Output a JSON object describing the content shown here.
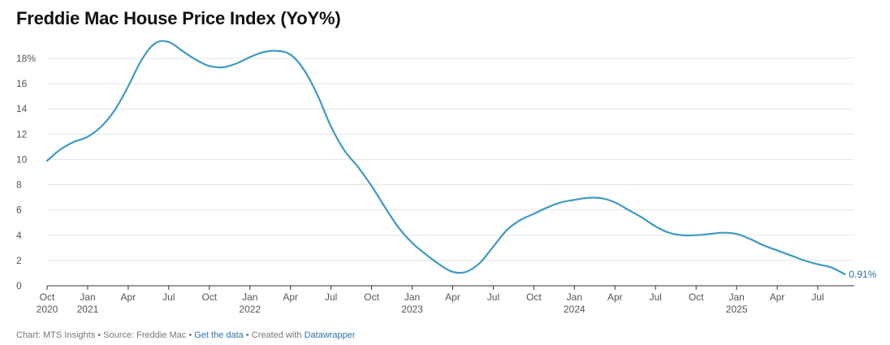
{
  "title": "Freddie Mac House Price Index (YoY%)",
  "footer": {
    "chart_credit": "Chart: MTS Insights",
    "source": "Source: Freddie Mac",
    "data_link": "Get the data",
    "created_with": "Created with",
    "tool_link": "Datawrapper",
    "separator": " • "
  },
  "colors": {
    "line": "#3e9ac4",
    "grid": "#e5e5e5",
    "axis": "#333333",
    "label": "#2f6f9e"
  },
  "chart_data": {
    "type": "line",
    "title": "Freddie Mac House Price Index (YoY%)",
    "xlabel": "",
    "ylabel": "",
    "ylim": [
      0,
      18
    ],
    "yticks": [
      0,
      2,
      4,
      6,
      8,
      10,
      12,
      14,
      16,
      18
    ],
    "ytick_labels": [
      "0",
      "2",
      "4",
      "6",
      "8",
      "10",
      "12",
      "14",
      "16",
      "18%"
    ],
    "grid": true,
    "x_ticks": [
      {
        "date": "2020-10",
        "label": "Oct",
        "year": "2020"
      },
      {
        "date": "2021-01",
        "label": "Jan",
        "year": "2021"
      },
      {
        "date": "2021-04",
        "label": "Apr",
        "year": ""
      },
      {
        "date": "2021-07",
        "label": "Jul",
        "year": ""
      },
      {
        "date": "2021-10",
        "label": "Oct",
        "year": ""
      },
      {
        "date": "2022-01",
        "label": "Jan",
        "year": "2022"
      },
      {
        "date": "2022-04",
        "label": "Apr",
        "year": ""
      },
      {
        "date": "2022-07",
        "label": "Jul",
        "year": ""
      },
      {
        "date": "2022-10",
        "label": "Oct",
        "year": ""
      },
      {
        "date": "2023-01",
        "label": "Jan",
        "year": "2023"
      },
      {
        "date": "2023-04",
        "label": "Apr",
        "year": ""
      },
      {
        "date": "2023-07",
        "label": "Jul",
        "year": ""
      },
      {
        "date": "2023-10",
        "label": "Oct",
        "year": ""
      },
      {
        "date": "2024-01",
        "label": "Jan",
        "year": "2024"
      },
      {
        "date": "2024-04",
        "label": "Apr",
        "year": ""
      },
      {
        "date": "2024-07",
        "label": "Jul",
        "year": ""
      },
      {
        "date": "2024-10",
        "label": "Oct",
        "year": ""
      },
      {
        "date": "2025-01",
        "label": "Jan",
        "year": "2025"
      },
      {
        "date": "2025-04",
        "label": "Apr",
        "year": ""
      },
      {
        "date": "2025-07",
        "label": "Jul",
        "year": ""
      }
    ],
    "x": [
      "2020-10",
      "2020-11",
      "2020-12",
      "2021-01",
      "2021-02",
      "2021-03",
      "2021-04",
      "2021-05",
      "2021-06",
      "2021-07",
      "2021-08",
      "2021-09",
      "2021-10",
      "2021-11",
      "2021-12",
      "2022-01",
      "2022-02",
      "2022-03",
      "2022-04",
      "2022-05",
      "2022-06",
      "2022-07",
      "2022-08",
      "2022-09",
      "2022-10",
      "2022-11",
      "2022-12",
      "2023-01",
      "2023-02",
      "2023-03",
      "2023-04",
      "2023-05",
      "2023-06",
      "2023-07",
      "2023-08",
      "2023-09",
      "2023-10",
      "2023-11",
      "2023-12",
      "2024-01",
      "2024-02",
      "2024-03",
      "2024-04",
      "2024-05",
      "2024-06",
      "2024-07",
      "2024-08",
      "2024-09",
      "2024-10",
      "2024-11",
      "2024-12",
      "2025-01",
      "2025-02",
      "2025-03",
      "2025-04",
      "2025-05",
      "2025-06",
      "2025-07",
      "2025-08",
      "2025-09"
    ],
    "series": [
      {
        "values": [
          9.9,
          10.8,
          11.4,
          11.8,
          12.6,
          13.9,
          15.8,
          17.9,
          19.2,
          19.3,
          18.6,
          17.9,
          17.4,
          17.3,
          17.6,
          18.1,
          18.5,
          18.6,
          18.3,
          17.1,
          15.1,
          12.6,
          10.7,
          9.4,
          7.9,
          6.2,
          4.6,
          3.4,
          2.5,
          1.7,
          1.1,
          1.1,
          1.8,
          3.1,
          4.4,
          5.2,
          5.7,
          6.2,
          6.6,
          6.8,
          6.96,
          6.93,
          6.6,
          6.0,
          5.4,
          4.7,
          4.2,
          4.0,
          4.0,
          4.1,
          4.2,
          4.1,
          3.7,
          3.2,
          2.8,
          2.4,
          2.0,
          1.7,
          1.45,
          0.91
        ]
      }
    ],
    "end_label": "0.91%"
  }
}
